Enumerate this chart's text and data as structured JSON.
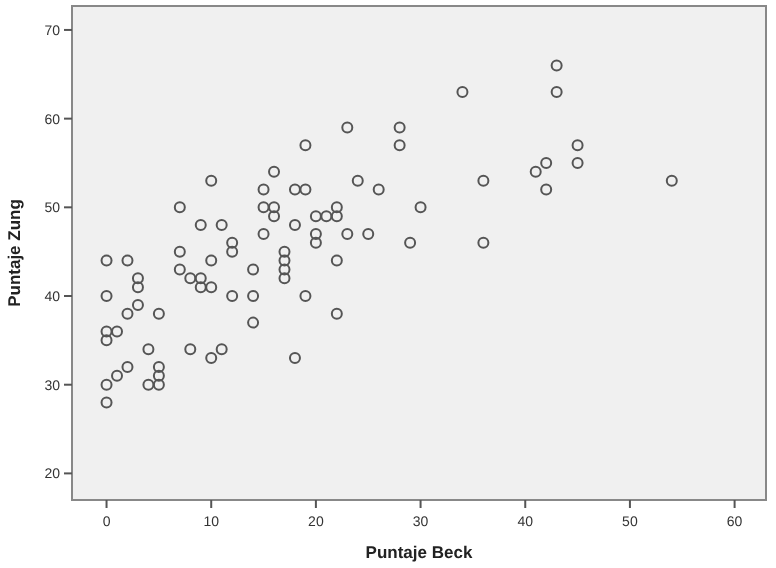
{
  "chart_data": {
    "type": "scatter",
    "xlabel": "Puntaje Beck",
    "ylabel": "Puntaje Zung",
    "xlim": [
      -3.3,
      63
    ],
    "ylim": [
      17,
      72.7
    ],
    "xticks": [
      0,
      10,
      20,
      30,
      40,
      50,
      60
    ],
    "yticks": [
      20,
      30,
      40,
      50,
      60,
      70
    ],
    "grid": false,
    "marker": "circle",
    "series": [
      {
        "color": "#555555",
        "x": [
          0,
          0,
          0,
          0,
          0,
          0,
          1,
          1,
          2,
          2,
          2,
          3,
          3,
          3,
          4,
          4,
          5,
          5,
          5,
          5,
          7,
          7,
          7,
          8,
          8,
          9,
          9,
          9,
          10,
          10,
          10,
          10,
          11,
          11,
          12,
          12,
          12,
          14,
          14,
          14,
          15,
          15,
          15,
          16,
          16,
          16,
          17,
          17,
          17,
          17,
          18,
          18,
          18,
          19,
          19,
          19,
          20,
          20,
          20,
          21,
          22,
          22,
          22,
          22,
          23,
          23,
          24,
          25,
          26,
          28,
          28,
          29,
          30,
          34,
          36,
          36,
          41,
          42,
          42,
          43,
          43,
          45,
          45,
          54
        ],
        "values": [
          44,
          40,
          36,
          35,
          30,
          28,
          36,
          31,
          44,
          38,
          32,
          42,
          41,
          39,
          34,
          30,
          38,
          32,
          31,
          30,
          50,
          45,
          43,
          42,
          34,
          42,
          41,
          48,
          53,
          44,
          41,
          33,
          48,
          34,
          46,
          45,
          40,
          43,
          40,
          37,
          52,
          50,
          47,
          54,
          49,
          50,
          45,
          44,
          43,
          42,
          52,
          48,
          33,
          57,
          52,
          40,
          49,
          47,
          46,
          49,
          50,
          49,
          44,
          38,
          59,
          47,
          53,
          47,
          52,
          59,
          57,
          46,
          50,
          63,
          53,
          46,
          54,
          55,
          52,
          66,
          63,
          57,
          55,
          53
        ]
      }
    ]
  }
}
